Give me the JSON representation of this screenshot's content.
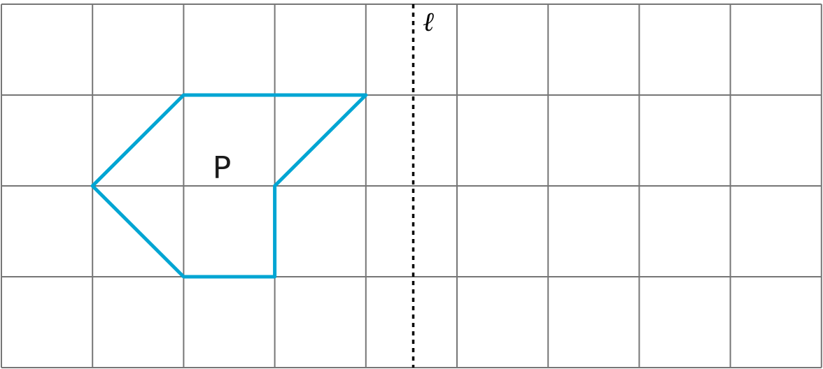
{
  "diagram": {
    "grid": {
      "columns": 9,
      "rows": 4,
      "line_color": "#767676"
    },
    "shape": {
      "label": "P",
      "color": "#00a5d3",
      "vertices_grid_units": [
        [
          2,
          1
        ],
        [
          4,
          1
        ],
        [
          3,
          2
        ],
        [
          3,
          3
        ],
        [
          2,
          3
        ],
        [
          1,
          2
        ]
      ]
    },
    "reflection_line": {
      "label": "ℓ",
      "style": "dotted",
      "color": "#000000",
      "position_grid_units": 4.52
    }
  }
}
